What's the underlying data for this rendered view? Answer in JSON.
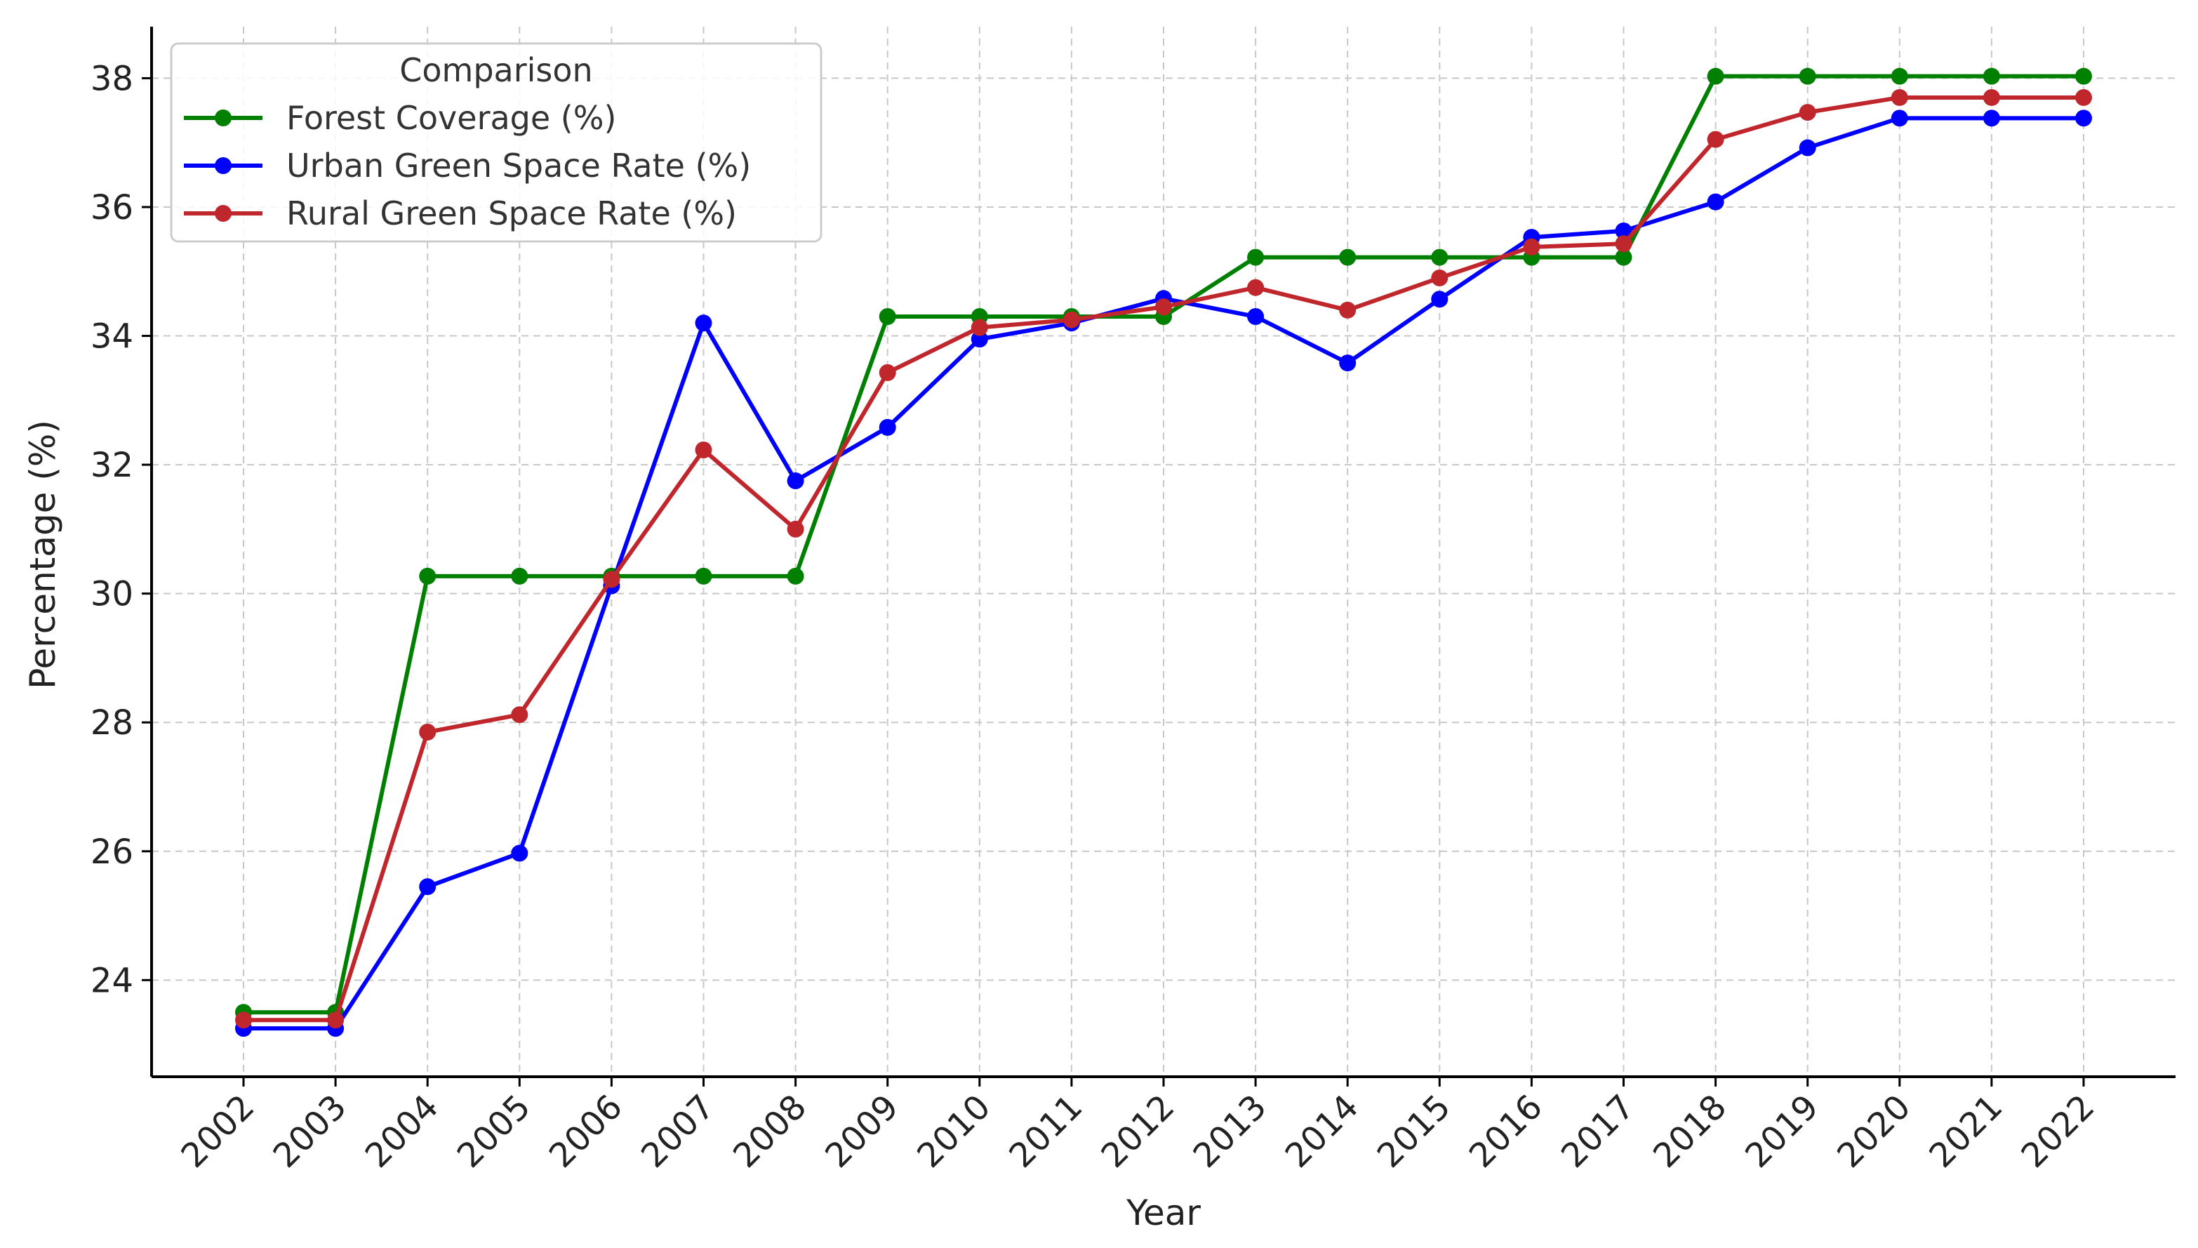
{
  "chart_data": {
    "type": "line",
    "xlabel": "Year",
    "ylabel": "Percentage (%)",
    "x": [
      "2002",
      "2003",
      "2004",
      "2005",
      "2006",
      "2007",
      "2008",
      "2009",
      "2010",
      "2011",
      "2012",
      "2013",
      "2014",
      "2015",
      "2016",
      "2017",
      "2018",
      "2019",
      "2020",
      "2021",
      "2022"
    ],
    "ylim": [
      22.5,
      38.8
    ],
    "yticks": [
      24,
      26,
      28,
      30,
      32,
      34,
      36,
      38
    ],
    "grid": true,
    "legend": {
      "title": "Comparison",
      "position": "top-left"
    },
    "series": [
      {
        "name": "Forest Coverage (%)",
        "color": "#008000",
        "values": [
          23.5,
          23.5,
          30.27,
          30.27,
          30.27,
          30.27,
          30.27,
          34.3,
          34.3,
          34.3,
          34.3,
          35.22,
          35.22,
          35.22,
          35.22,
          35.22,
          38.03,
          38.03,
          38.03,
          38.03,
          38.03
        ]
      },
      {
        "name": "Urban Green Space Rate (%)",
        "color": "#0000ff",
        "values": [
          23.25,
          23.25,
          25.45,
          25.97,
          30.12,
          34.2,
          31.75,
          32.58,
          33.95,
          34.2,
          34.58,
          34.3,
          33.58,
          34.57,
          35.53,
          35.63,
          36.08,
          36.92,
          37.38,
          37.38,
          37.38
        ]
      },
      {
        "name": "Rural Green Space Rate (%)",
        "color": "#c0272d",
        "values": [
          23.38,
          23.38,
          27.85,
          28.12,
          30.22,
          32.23,
          31.0,
          33.43,
          34.13,
          34.25,
          34.45,
          34.75,
          34.4,
          34.9,
          35.38,
          35.43,
          37.05,
          37.47,
          37.7,
          37.7,
          37.7
        ]
      }
    ]
  }
}
